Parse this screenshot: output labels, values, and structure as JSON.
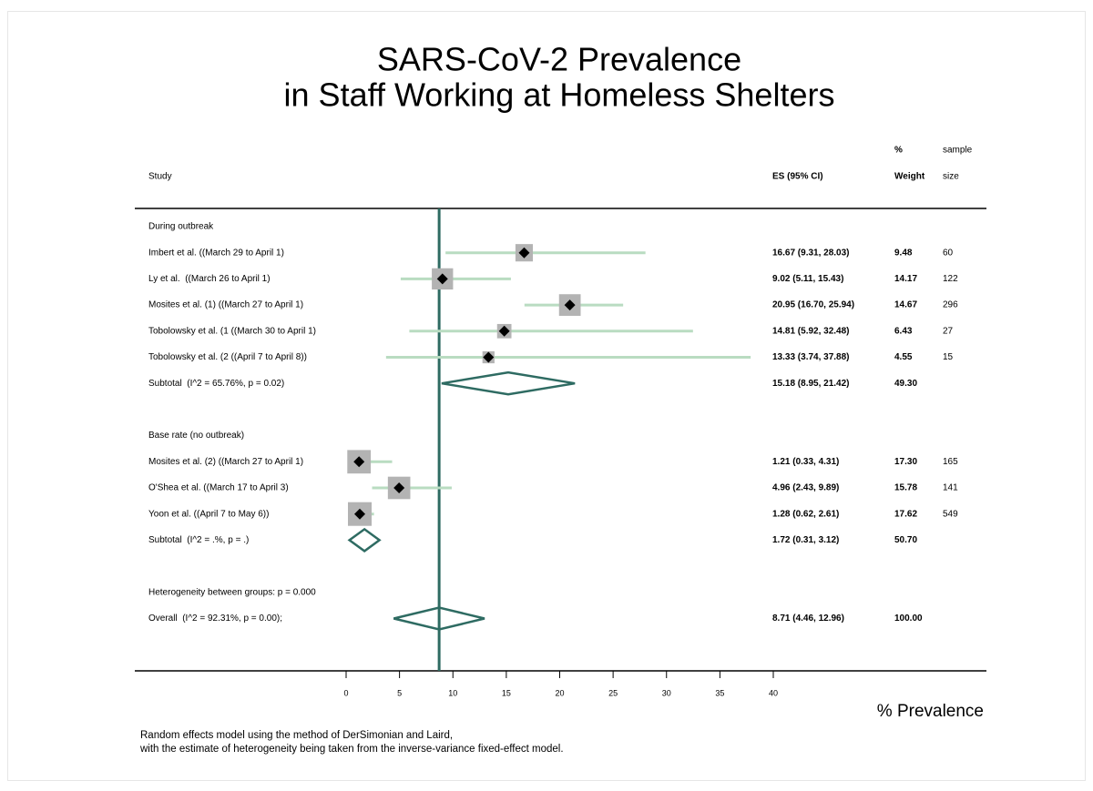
{
  "chart_data": {
    "type": "forest",
    "title": [
      "SARS-CoV-2 Prevalence",
      "in Staff Working at Homeless Shelters"
    ],
    "columns": {
      "study": "Study",
      "es": "ES (95% CI)",
      "weight": [
        "%",
        "Weight"
      ],
      "n": [
        "sample",
        "size"
      ]
    },
    "xlabel": "% Prevalence",
    "xlim": [
      0,
      40
    ],
    "xticks": [
      0,
      5,
      10,
      15,
      20,
      25,
      30,
      35,
      40
    ],
    "groups": [
      {
        "name": "During outbreak",
        "studies": [
          {
            "label": "Imbert et al. ((March 29 to April 1)",
            "es": 16.67,
            "lo": 9.31,
            "hi": 28.03,
            "es_label": "16.67 (9.31, 28.03)",
            "weight": 9.48,
            "weight_label": "9.48",
            "n": 60
          },
          {
            "label": "Ly et al.  ((March 26 to April 1)",
            "es": 9.02,
            "lo": 5.11,
            "hi": 15.43,
            "es_label": "9.02 (5.11, 15.43)",
            "weight": 14.17,
            "weight_label": "14.17",
            "n": 122
          },
          {
            "label": "Mosites et al. (1) ((March 27 to April 1)",
            "es": 20.95,
            "lo": 16.7,
            "hi": 25.94,
            "es_label": "20.95 (16.70, 25.94)",
            "weight": 14.67,
            "weight_label": "14.67",
            "n": 296
          },
          {
            "label": "Tobolowsky et al. (1 ((March 30 to April 1)",
            "es": 14.81,
            "lo": 5.92,
            "hi": 32.48,
            "es_label": "14.81 (5.92, 32.48)",
            "weight": 6.43,
            "weight_label": "6.43",
            "n": 27
          },
          {
            "label": "Tobolowsky et al. (2 ((April 7 to April 8))",
            "es": 13.33,
            "lo": 3.74,
            "hi": 37.88,
            "es_label": "13.33 (3.74, 37.88)",
            "weight": 4.55,
            "weight_label": "4.55",
            "n": 15
          }
        ],
        "subtotal": {
          "label": "Subtotal  (I^2 = 65.76%, p = 0.02)",
          "es": 15.18,
          "lo": 8.95,
          "hi": 21.42,
          "es_label": "15.18 (8.95, 21.42)",
          "weight": 49.3,
          "weight_label": "49.30"
        }
      },
      {
        "name": "Base rate (no outbreak)",
        "studies": [
          {
            "label": "Mosites et al. (2) ((March 27 to April 1)",
            "es": 1.21,
            "lo": 0.33,
            "hi": 4.31,
            "es_label": "1.21 (0.33, 4.31)",
            "weight": 17.3,
            "weight_label": "17.30",
            "n": 165
          },
          {
            "label": "O'Shea et al. ((March 17 to April 3)",
            "es": 4.96,
            "lo": 2.43,
            "hi": 9.89,
            "es_label": "4.96 (2.43, 9.89)",
            "weight": 15.78,
            "weight_label": "15.78",
            "n": 141
          },
          {
            "label": "Yoon et al. ((April 7 to May 6))",
            "es": 1.28,
            "lo": 0.62,
            "hi": 2.61,
            "es_label": "1.28 (0.62, 2.61)",
            "weight": 17.62,
            "weight_label": "17.62",
            "n": 549
          }
        ],
        "subtotal": {
          "label": "Subtotal  (I^2 = .%, p = .)",
          "es": 1.72,
          "lo": 0.31,
          "hi": 3.12,
          "es_label": "1.72 (0.31, 3.12)",
          "weight": 50.7,
          "weight_label": "50.70"
        }
      }
    ],
    "heterogeneity": "Heterogeneity between groups: p = 0.000",
    "overall": {
      "label": "Overall  (I^2 = 92.31%, p = 0.00);",
      "es": 8.71,
      "lo": 4.46,
      "hi": 12.96,
      "es_label": "8.71 (4.46, 12.96)",
      "weight": 100.0,
      "weight_label": "100.00"
    },
    "note": [
      "Random effects model using the method of DerSimonian and Laird,",
      "with the estimate of heterogeneity being taken from the inverse-variance fixed-effect model."
    ],
    "colors": {
      "ci": "#b9dcc1",
      "box": "#b3b3b3",
      "point": "#000000",
      "diamond": "#2e6b62",
      "overall_line": "#2e6b62"
    }
  }
}
